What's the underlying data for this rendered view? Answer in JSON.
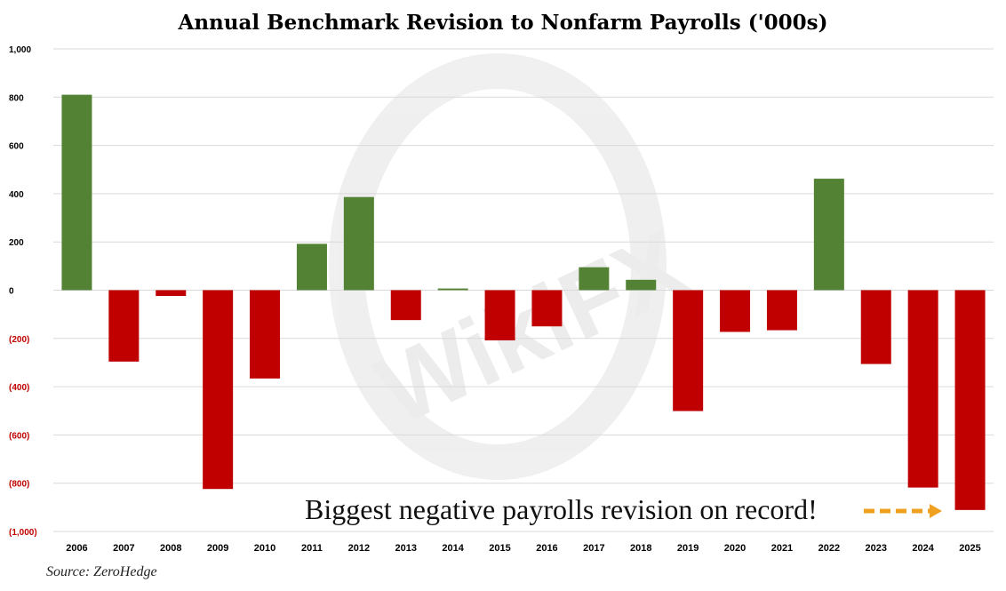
{
  "colors": {
    "positive": "#548235",
    "negative": "#c00000",
    "grid": "#d9d9d9",
    "negative_tick": "#c00000",
    "positive_tick": "#000000",
    "arrow": "#f0a020"
  },
  "annotation": "Biggest negative payrolls revision on record!",
  "source": "Source: ZeroHedge",
  "watermark": "WikiFX",
  "chart_data": {
    "type": "bar",
    "title": "Annual Benchmark Revision to Nonfarm Payrolls ('000s)",
    "xlabel": "",
    "ylabel": "",
    "ylim": [
      -1000,
      1000
    ],
    "grid": true,
    "yticks": [
      1000,
      800,
      600,
      400,
      200,
      0,
      -200,
      -400,
      -600,
      -800,
      -1000
    ],
    "ytick_labels": [
      "1,000",
      "800",
      "600",
      "400",
      "200",
      "0",
      "(200)",
      "(400)",
      "(600)",
      "(800)",
      "(1,000)"
    ],
    "categories": [
      "2006",
      "2007",
      "2008",
      "2009",
      "2010",
      "2011",
      "2012",
      "2013",
      "2014",
      "2015",
      "2016",
      "2017",
      "2018",
      "2019",
      "2020",
      "2021",
      "2022",
      "2023",
      "2024",
      "2025"
    ],
    "values": [
      810,
      -296,
      -24,
      -824,
      -366,
      192,
      386,
      -124,
      7,
      -208,
      -150,
      95,
      43,
      -501,
      -173,
      -166,
      462,
      -306,
      -818,
      -911
    ]
  }
}
